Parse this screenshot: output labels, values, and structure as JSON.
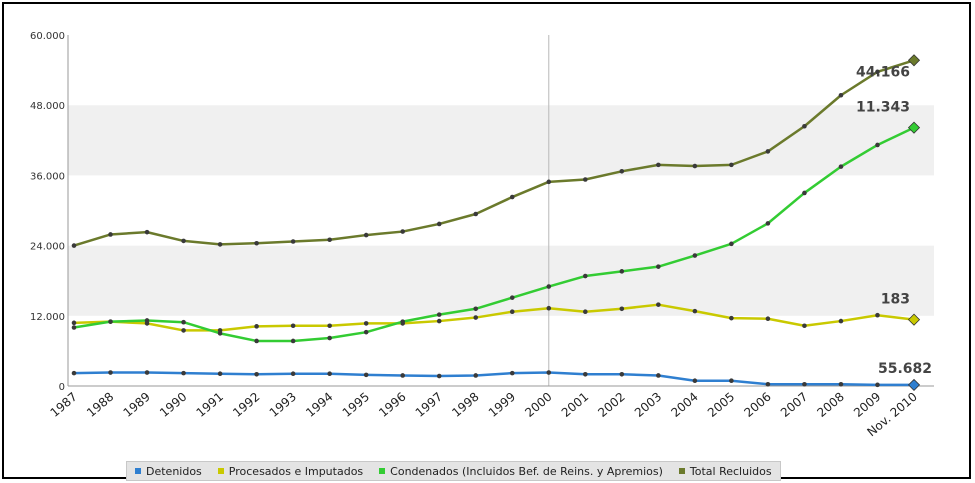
{
  "chart_data": {
    "type": "line",
    "title": "",
    "xlabel": "",
    "ylabel": "",
    "categories": [
      "1987",
      "1988",
      "1989",
      "1990",
      "1991",
      "1992",
      "1993",
      "1994",
      "1995",
      "1996",
      "1997",
      "1998",
      "1999",
      "2000",
      "2001",
      "2002",
      "2003",
      "2004",
      "2005",
      "2006",
      "2007",
      "2008",
      "2009",
      "Nov. 2010"
    ],
    "ylim": [
      0,
      60000
    ],
    "yticks": [
      0,
      12000,
      24000,
      36000,
      48000,
      60000
    ],
    "ytick_labels": [
      "0",
      "12.000",
      "24.000",
      "36.000",
      "48.000",
      "60.000"
    ],
    "grid": "alternating horizontal bands",
    "legend_position": "bottom",
    "series": [
      {
        "name": "Detenidos",
        "color": "#2f7fd0",
        "values": [
          2200,
          2300,
          2300,
          2200,
          2100,
          2000,
          2100,
          2100,
          1900,
          1800,
          1700,
          1800,
          2200,
          2300,
          2000,
          2000,
          1800,
          900,
          900,
          300,
          300,
          300,
          200,
          183
        ]
      },
      {
        "name": "Procesados e Imputados",
        "color": "#c9c900",
        "values": [
          10800,
          11000,
          10700,
          9500,
          9500,
          10200,
          10300,
          10300,
          10700,
          10700,
          11100,
          11700,
          12700,
          13300,
          12700,
          13200,
          13900,
          12800,
          11600,
          11500,
          10300,
          11100,
          12100,
          11343
        ]
      },
      {
        "name": "Condenados (Incluidos Bef. de Reins. y Apremios)",
        "color": "#33cc33",
        "values": [
          10000,
          11000,
          11200,
          10900,
          9000,
          7700,
          7700,
          8200,
          9200,
          11000,
          12200,
          13200,
          15100,
          17000,
          18800,
          19600,
          20400,
          22300,
          24300,
          27800,
          33000,
          37500,
          41200,
          44166
        ]
      },
      {
        "name": "Total Recluidos",
        "color": "#6b7a2c",
        "values": [
          24000,
          25900,
          26300,
          24800,
          24200,
          24400,
          24700,
          25000,
          25800,
          26400,
          27700,
          29400,
          32300,
          34900,
          35300,
          36700,
          37800,
          37600,
          37800,
          40100,
          44400,
          49700,
          53700,
          55682
        ]
      }
    ],
    "annotations": [
      "55.682",
      "44.166",
      "11.343",
      "183"
    ]
  }
}
